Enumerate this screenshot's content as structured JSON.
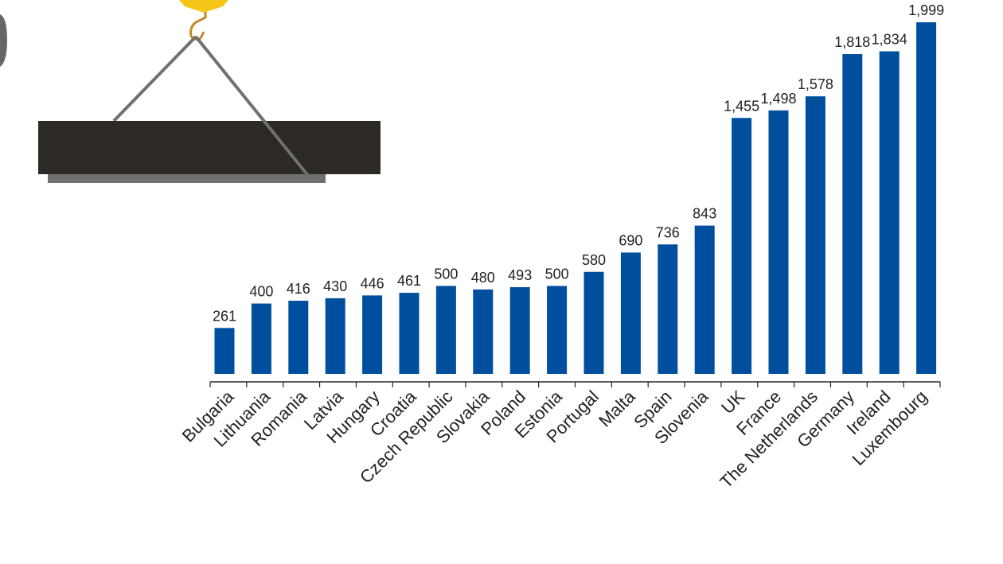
{
  "chart_data": {
    "type": "bar",
    "categories": [
      "Bulgaria",
      "Lithuania",
      "Romania",
      "Latvia",
      "Hungary",
      "Croatia",
      "Czech Republic",
      "Slovakia",
      "Poland",
      "Estonia",
      "Portugal",
      "Malta",
      "Spain",
      "Slovenia",
      "UK",
      "France",
      "The Netherlands",
      "Germany",
      "Ireland",
      "Luxembourg"
    ],
    "values": [
      261,
      400,
      416,
      430,
      446,
      461,
      500,
      480,
      493,
      500,
      580,
      690,
      736,
      843,
      1455,
      1498,
      1578,
      1818,
      1834,
      1999
    ],
    "value_labels": [
      "261",
      "400",
      "416",
      "430",
      "446",
      "461",
      "500",
      "480",
      "493",
      "500",
      "580",
      "690",
      "736",
      "843",
      "1,455",
      "1,498",
      "1,578",
      "1,818",
      "1,834",
      "1,999"
    ],
    "title": "",
    "xlabel": "",
    "ylabel": "",
    "ylim": [
      0,
      1999
    ],
    "grid": false,
    "legend": "none",
    "bar_color": "#004f9e"
  },
  "illustration": {
    "icon": "crane-hook-lifting-slab-icon",
    "hook_color": "#f5c518",
    "slab_color": "#2d2a26"
  }
}
